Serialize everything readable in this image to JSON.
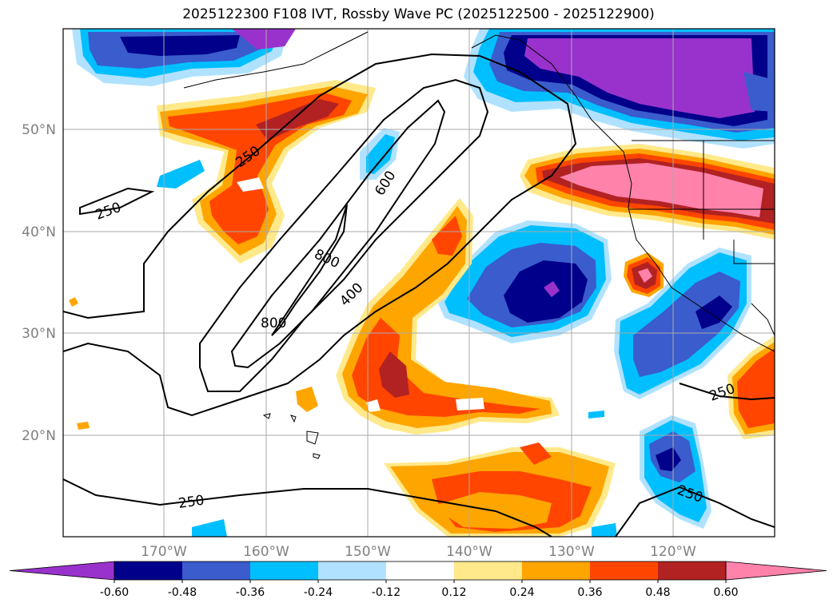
{
  "title": "2025122300 F108 IVT, Rossby Wave PC (2025122500 - 2025122900)",
  "axes": {
    "lat_labels": [
      "50°N",
      "40°N",
      "30°N",
      "20°N"
    ],
    "lon_labels": [
      "170°W",
      "160°W",
      "150°W",
      "140°W",
      "130°W",
      "120°W"
    ]
  },
  "contour_labels": [
    "250",
    "250",
    "250",
    "250",
    "600",
    "800",
    "800",
    "400",
    "250"
  ],
  "colorbar": {
    "ticks": [
      "-0.60",
      "-0.48",
      "-0.36",
      "-0.24",
      "-0.12",
      "0.12",
      "0.24",
      "0.36",
      "0.48",
      "0.60"
    ],
    "colors": [
      "#9932cc",
      "#00008b",
      "#3a5ccc",
      "#00bfff",
      "#b0e2ff",
      "#ffffff",
      "#ffe98a",
      "#ffa500",
      "#ff4500",
      "#b22222",
      "#ff82ab"
    ]
  }
}
